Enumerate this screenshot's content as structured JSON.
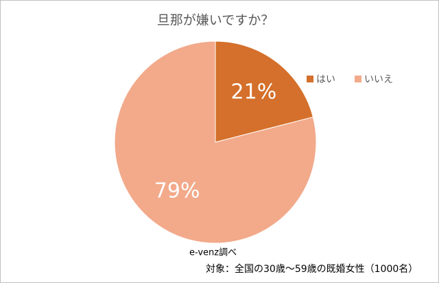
{
  "chart_data": {
    "type": "pie",
    "title": "旦那が嫌いですか？",
    "categories": [
      "はい",
      "いいえ"
    ],
    "values": [
      21,
      79
    ],
    "value_labels": [
      "21%",
      "79%"
    ],
    "colors": [
      "#d4702b",
      "#f2aa8b"
    ],
    "legend": "top-right",
    "annotations": [
      "e-venz調べ",
      "対象：全国の30歳～59歳の既婚女性（1000名）"
    ]
  }
}
